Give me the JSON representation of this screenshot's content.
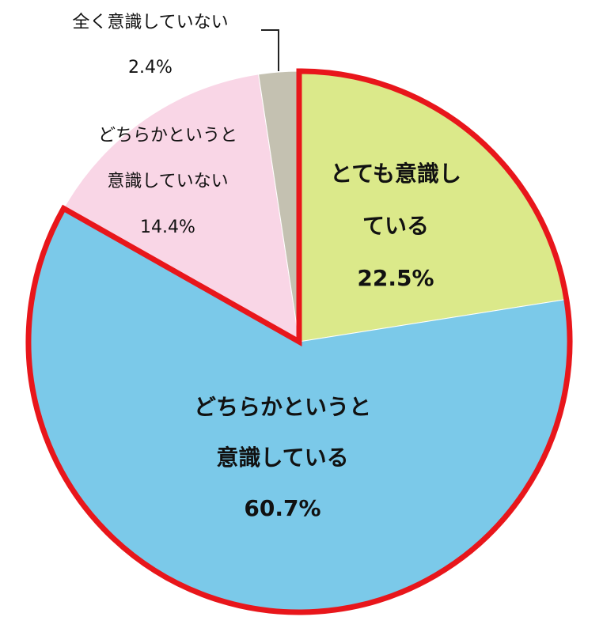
{
  "chart_data": {
    "type": "pie",
    "categories": [
      "とても意識している",
      "どちらかというと意識している",
      "どちらかというと意識していない",
      "全く意識していない"
    ],
    "values": [
      22.5,
      60.7,
      14.4,
      2.4
    ],
    "value_labels": [
      "22.5%",
      "60.7%",
      "14.4%",
      "2.4%"
    ],
    "colors": [
      "#dbe98a",
      "#7bc9e9",
      "#f9d6e6",
      "#c4c1b1"
    ],
    "highlighted": [
      0,
      1
    ],
    "highlight_color": "#e8161b"
  }
}
